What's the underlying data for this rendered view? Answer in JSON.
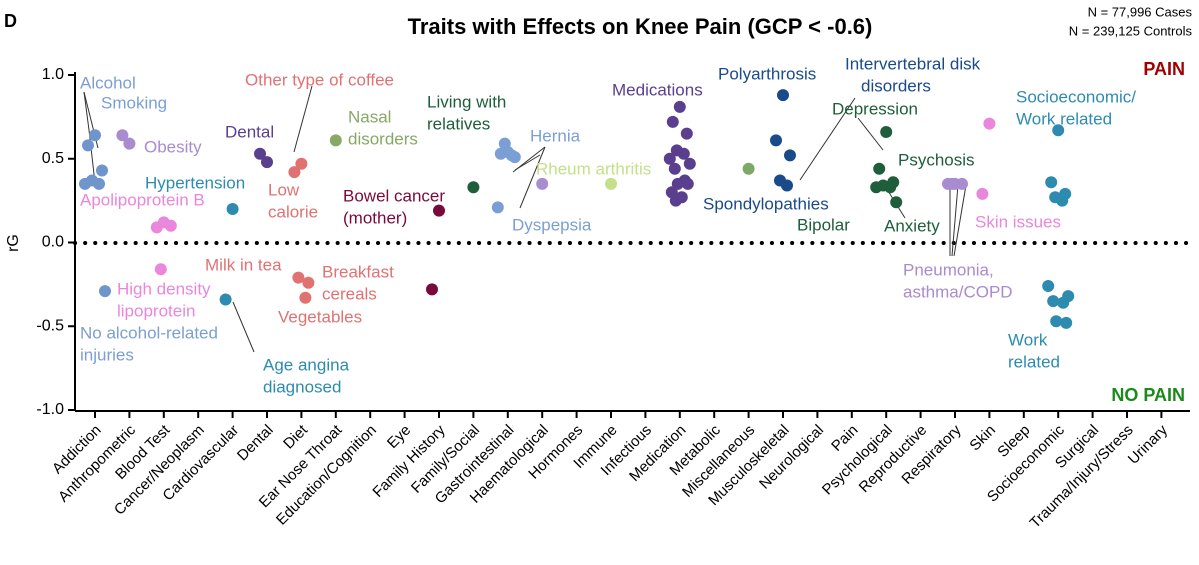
{
  "chart_data": {
    "type": "strip",
    "panel": "D",
    "title": "Traits with Effects on Knee Pain (GCP < -0.6)",
    "notes": [
      "N = 77,996 Cases",
      "N = 239,125 Controls"
    ],
    "y_label": "rG",
    "top_label": "PAIN",
    "bottom_label": "NO PAIN",
    "categories": [
      "Addiction",
      "Anthropometric",
      "Blood Test",
      "Cancer/Neoplasm",
      "Cardiovascular",
      "Dental",
      "Diet",
      "Ear Nose Throat",
      "Education/Cognition",
      "Eye",
      "Family History",
      "Family/Social",
      "Gastrointestinal",
      "Haematological",
      "Hormones",
      "Immune",
      "Infectious",
      "Medication",
      "Metabolic",
      "Miscellaneous",
      "Musculoskeletal",
      "Neurological",
      "Pain",
      "Psychological",
      "Reproductive",
      "Respiratory",
      "Skin",
      "Sleep",
      "Socioeconomic",
      "Surgical",
      "Trauma/Injury/Stress",
      "Urinary"
    ],
    "colors": [
      "#6f95cc",
      "#a98bd0",
      "#ea86dc",
      "#888888",
      "#2e8bb0",
      "#5a3f8f",
      "#e07272",
      "#88a866",
      "#888888",
      "#888888",
      "#7a0a3c",
      "#1e5e3a",
      "#7b9fd4",
      "#a98bd0",
      "#888888",
      "#c5e08a",
      "#888888",
      "#5a3f8f",
      "#888888",
      "#7da868",
      "#1a4a8a",
      "#888888",
      "#888888",
      "#1e5e3a",
      "#888888",
      "#a98bd0",
      "#ea86dc",
      "#888888",
      "#2e8bb0",
      "#888888",
      "#888888",
      "#888888"
    ],
    "values": [
      [
        0.64,
        0.58,
        0.43,
        0.37,
        0.35,
        0.35,
        -0.29
      ],
      [
        0.59,
        0.64
      ],
      [
        0.12,
        0.09,
        0.1,
        -0.16
      ],
      [],
      [
        0.2,
        -0.34
      ],
      [
        0.48,
        0.53
      ],
      [
        0.47,
        0.42,
        -0.24,
        -0.21,
        -0.33
      ],
      [
        0.61
      ],
      [],
      [],
      [
        0.19,
        -0.28
      ],
      [
        0.33
      ],
      [
        0.54,
        0.53,
        0.51,
        0.59,
        0.52,
        0.21
      ],
      [
        0.35
      ],
      [],
      [
        0.35
      ],
      [],
      [
        0.81,
        0.72,
        0.65,
        0.55,
        0.53,
        0.5,
        0.47,
        0.44,
        0.37,
        0.35,
        0.35,
        0.3,
        0.27,
        0.25
      ],
      [],
      [
        0.44
      ],
      [
        0.88,
        0.61,
        0.52,
        0.37,
        0.34
      ],
      [],
      [],
      [
        0.66,
        0.44,
        0.36,
        0.34,
        0.33,
        0.33,
        0.24
      ],
      [],
      [
        0.35,
        0.35,
        0.35,
        0.35
      ],
      [
        0.71,
        0.29
      ],
      [],
      [
        0.67,
        0.36,
        0.29,
        0.27,
        0.25,
        -0.26,
        -0.32,
        -0.35,
        -0.36,
        -0.47,
        -0.48
      ],
      [],
      [],
      []
    ],
    "ylim": [
      -1,
      1.0
    ],
    "yticks": [
      {
        "value": -1,
        "label": "-1.0"
      },
      -0.5,
      {
        "value": 0,
        "label": "0.0"
      },
      0.5,
      {
        "value": 1,
        "label": "1.0"
      }
    ],
    "annotations": [
      {
        "text": [
          "Alcohol"
        ],
        "color": "#7b9fd4"
      },
      {
        "text": [
          "Smoking"
        ],
        "color": "#7b9fd4"
      },
      {
        "text": [
          "Obesity"
        ],
        "color": "#a98bd0"
      },
      {
        "text": [
          "Apolipoprotein B"
        ],
        "color": "#ea86dc"
      },
      {
        "text": [
          "Hypertension"
        ],
        "color": "#2e8bb0"
      },
      {
        "text": [
          "High density",
          "lipoprotein"
        ],
        "color": "#ea86dc"
      },
      {
        "text": [
          "No alcohol-related",
          "injuries"
        ],
        "color": "#7b9fd4"
      },
      {
        "text": [
          "Age angina",
          "diagnosed"
        ],
        "color": "#2e8bb0"
      },
      {
        "text": [
          "Dental"
        ],
        "color": "#5a3f8f"
      },
      {
        "text": [
          "Other type of coffee"
        ],
        "color": "#e07272"
      },
      {
        "text": [
          "Low",
          "calorie"
        ],
        "color": "#e07272"
      },
      {
        "text": [
          "Milk in tea"
        ],
        "color": "#e07272"
      },
      {
        "text": [
          "Breakfast",
          "cereals"
        ],
        "color": "#e07272"
      },
      {
        "text": [
          "Vegetables"
        ],
        "color": "#e07272"
      },
      {
        "text": [
          "Nasal",
          "disorders"
        ],
        "color": "#88a866"
      },
      {
        "text": [
          "Bowel cancer",
          "(mother)"
        ],
        "color": "#7a0a3c"
      },
      {
        "text": [
          "Living with",
          "relatives"
        ],
        "color": "#1e5e3a"
      },
      {
        "text": [
          "Hernia"
        ],
        "color": "#7b9fd4"
      },
      {
        "text": [
          "Rheum arthritis"
        ],
        "color": "#c5e08a"
      },
      {
        "text": [
          "Dyspepsia"
        ],
        "color": "#7b9fd4"
      },
      {
        "text": [
          "Medications"
        ],
        "color": "#5a3f8f"
      },
      {
        "text": [
          "Polyarthrosis"
        ],
        "color": "#1a4a8a"
      },
      {
        "text": [
          "Intervertebral disk",
          "disorders"
        ],
        "color": "#1a4a8a"
      },
      {
        "text": [
          "Spondylopathies"
        ],
        "color": "#1a4a8a"
      },
      {
        "text": [
          "Depression"
        ],
        "color": "#1e5e3a"
      },
      {
        "text": [
          "Psychosis"
        ],
        "color": "#1e5e3a"
      },
      {
        "text": [
          "Bipolar"
        ],
        "color": "#1e5e3a"
      },
      {
        "text": [
          "Anxiety"
        ],
        "color": "#1e5e3a"
      },
      {
        "text": [
          "Pneumonia,",
          "asthma/COPD"
        ],
        "color": "#a98bd0"
      },
      {
        "text": [
          "Skin issues"
        ],
        "color": "#ea86dc"
      },
      {
        "text": [
          "Socioeconomic/",
          "Work related"
        ],
        "color": "#2e8bb0"
      },
      {
        "text": [
          "Work",
          "related"
        ],
        "color": "#2e8bb0"
      }
    ]
  }
}
